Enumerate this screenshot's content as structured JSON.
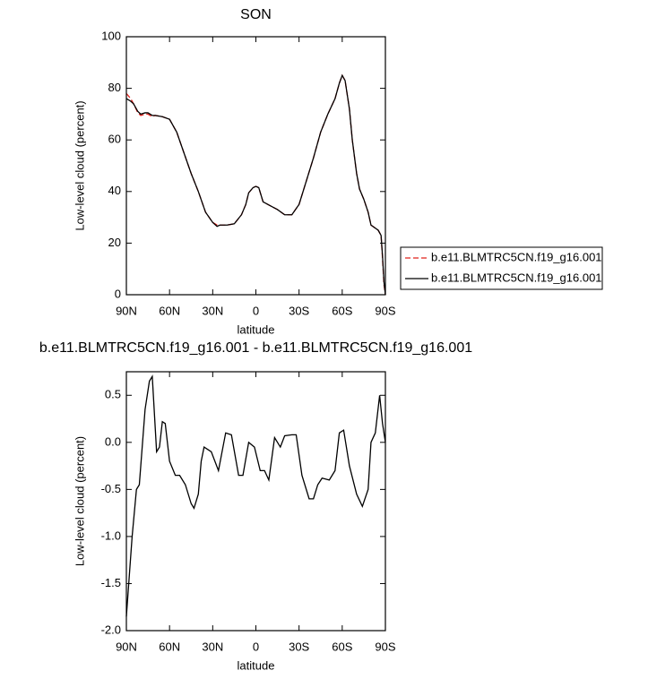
{
  "chart_data": [
    {
      "type": "line",
      "title": "SON",
      "xlabel": "latitude",
      "ylabel": "Low-level cloud (percent)",
      "x": [
        90,
        87,
        85,
        82,
        80,
        77,
        75,
        72,
        70,
        65,
        60,
        55,
        50,
        45,
        40,
        35,
        30,
        27,
        25,
        20,
        15,
        10,
        7,
        5,
        2,
        0,
        -2,
        -5,
        -10,
        -15,
        -20,
        -25,
        -30,
        -35,
        -40,
        -45,
        -50,
        -55,
        -58,
        -60,
        -62,
        -65,
        -67,
        -70,
        -72,
        -75,
        -78,
        -80,
        -85,
        -87,
        -88,
        -89,
        -90
      ],
      "series": [
        {
          "name": "b.e11.BLMTRC5CN.f19_g16.001",
          "color": "#e0201b",
          "dashed": true,
          "values": [
            78,
            76,
            74,
            70.5,
            69.5,
            70,
            70,
            69,
            69.5,
            69,
            68,
            63,
            55,
            47,
            40,
            32,
            28,
            27,
            27,
            27,
            27.5,
            31,
            35,
            39.5,
            41.5,
            42,
            41.5,
            36,
            34.5,
            33,
            31,
            31,
            35,
            44,
            53,
            63,
            70,
            76,
            82,
            85,
            83,
            72,
            60,
            47,
            41,
            37,
            32,
            27,
            25,
            23,
            14,
            4,
            0
          ]
        },
        {
          "name": "b.e11.BLMTRC5CN.f19_g16.001",
          "color": "#000000",
          "dashed": false,
          "values": [
            76,
            75,
            74,
            71,
            70,
            70.5,
            70.5,
            69.5,
            69.5,
            69,
            68,
            63,
            55,
            47,
            40,
            32,
            28,
            26.5,
            27,
            27,
            27.5,
            31,
            35,
            39.5,
            41.5,
            42,
            41.5,
            36,
            34.5,
            33,
            31,
            31,
            35,
            44,
            53,
            63,
            70,
            76,
            82,
            85,
            83,
            72,
            60,
            47,
            41,
            37,
            32,
            27,
            25,
            23,
            15,
            5,
            0
          ]
        }
      ],
      "xlim": [
        90,
        -90
      ],
      "xticks": [
        {
          "value": 90,
          "label": "90N"
        },
        {
          "value": 60,
          "label": "60N"
        },
        {
          "value": 30,
          "label": "30N"
        },
        0,
        {
          "value": -30,
          "label": "30S"
        },
        {
          "value": -60,
          "label": "60S"
        },
        {
          "value": -90,
          "label": "90S"
        }
      ],
      "ylim": [
        0,
        100
      ],
      "yticks": [
        0,
        20,
        40,
        60,
        80,
        100
      ],
      "legend": "right"
    },
    {
      "type": "line",
      "title": "b.e11.BLMTRC5CN.f19_g16.001 - b.e11.BLMTRC5CN.f19_g16.001",
      "xlabel": "latitude",
      "ylabel": "Low-level cloud (percent)",
      "x": [
        90,
        86,
        83,
        81,
        77,
        74,
        72,
        69,
        67,
        65,
        63,
        60,
        56,
        53,
        49,
        45,
        43,
        40,
        38,
        36,
        31,
        26,
        21,
        17,
        12,
        9,
        5,
        1,
        -3,
        -6,
        -9,
        -13,
        -17,
        -20,
        -25,
        -28,
        -32,
        -37,
        -40,
        -43,
        -46,
        -51,
        -55,
        -58,
        -61,
        -65,
        -70,
        -74,
        -78,
        -80,
        -83,
        -86,
        -88,
        -90
      ],
      "series": [
        {
          "color": "#000000",
          "dashed": false,
          "values": [
            -1.85,
            -1.0,
            -0.5,
            -0.45,
            0.35,
            0.65,
            0.7,
            -0.1,
            -0.05,
            0.22,
            0.2,
            -0.2,
            -0.35,
            -0.35,
            -0.45,
            -0.65,
            -0.7,
            -0.55,
            -0.2,
            -0.05,
            -0.1,
            -0.3,
            0.1,
            0.08,
            -0.35,
            -0.35,
            0.0,
            -0.05,
            -0.3,
            -0.3,
            -0.4,
            0.05,
            -0.05,
            0.07,
            0.08,
            0.08,
            -0.35,
            -0.6,
            -0.6,
            -0.45,
            -0.38,
            -0.4,
            -0.3,
            0.1,
            0.13,
            -0.25,
            -0.55,
            -0.68,
            -0.5,
            0.0,
            0.1,
            0.5,
            0.2,
            0.0
          ]
        }
      ],
      "xlim": [
        90,
        -90
      ],
      "xticks": [
        {
          "value": 90,
          "label": "90N"
        },
        {
          "value": 60,
          "label": "60N"
        },
        {
          "value": 30,
          "label": "30N"
        },
        0,
        {
          "value": -30,
          "label": "30S"
        },
        {
          "value": -60,
          "label": "60S"
        },
        {
          "value": -90,
          "label": "90S"
        }
      ],
      "ylim": [
        -2,
        0.75
      ],
      "yticks": [
        {
          "value": -2,
          "label": "-2.0"
        },
        -1.5,
        {
          "value": -1,
          "label": "-1.0"
        },
        -0.5,
        {
          "value": 0,
          "label": "0.0"
        },
        0.5
      ]
    }
  ]
}
